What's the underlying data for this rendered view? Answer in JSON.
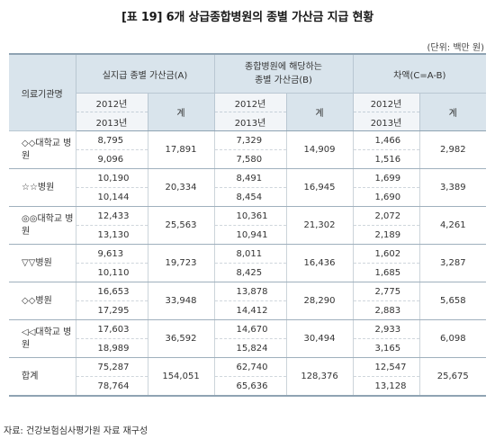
{
  "title": "[표 19] 6개 상급종합병원의 종별 가산금 지급 현황",
  "unit": "(단위: 백만 원)",
  "headers": {
    "name": "의료기관명",
    "col_a": "실지급 종별 가산금(A)",
    "col_b": "종합병원에 해당하는 종별 가산금(B)",
    "col_c": "차액(C=A-B)",
    "year1": "2012년",
    "year2": "2013년",
    "total": "계"
  },
  "rows": [
    {
      "name": "◇◇대학교 병원",
      "a2012": "8,795",
      "a2013": "9,096",
      "a_total": "17,891",
      "b2012": "7,329",
      "b2013": "7,580",
      "b_total": "14,909",
      "c2012": "1,466",
      "c2013": "1,516",
      "c_total": "2,982"
    },
    {
      "name": "☆☆병원",
      "a2012": "10,190",
      "a2013": "10,144",
      "a_total": "20,334",
      "b2012": "8,491",
      "b2013": "8,454",
      "b_total": "16,945",
      "c2012": "1,699",
      "c2013": "1,690",
      "c_total": "3,389"
    },
    {
      "name": "◎◎대학교 병원",
      "a2012": "12,433",
      "a2013": "13,130",
      "a_total": "25,563",
      "b2012": "10,361",
      "b2013": "10,941",
      "b_total": "21,302",
      "c2012": "2,072",
      "c2013": "2,189",
      "c_total": "4,261"
    },
    {
      "name": "▽▽병원",
      "a2012": "9,613",
      "a2013": "10,110",
      "a_total": "19,723",
      "b2012": "8,011",
      "b2013": "8,425",
      "b_total": "16,436",
      "c2012": "1,602",
      "c2013": "1,685",
      "c_total": "3,287"
    },
    {
      "name": "◇◇병원",
      "a2012": "16,653",
      "a2013": "17,295",
      "a_total": "33,948",
      "b2012": "13,878",
      "b2013": "14,412",
      "b_total": "28,290",
      "c2012": "2,775",
      "c2013": "2,883",
      "c_total": "5,658"
    },
    {
      "name": "◁◁대학교 병원",
      "a2012": "17,603",
      "a2013": "18,989",
      "a_total": "36,592",
      "b2012": "14,670",
      "b2013": "15,824",
      "b_total": "30,494",
      "c2012": "2,933",
      "c2013": "3,165",
      "c_total": "6,098"
    },
    {
      "name": "합계",
      "a2012": "75,287",
      "a2013": "78,764",
      "a_total": "154,051",
      "b2012": "62,740",
      "b2013": "65,636",
      "b_total": "128,376",
      "c2012": "12,547",
      "c2013": "13,128",
      "c_total": "25,675"
    }
  ],
  "source": "자료: 건강보험심사평가원 자료 재구성"
}
